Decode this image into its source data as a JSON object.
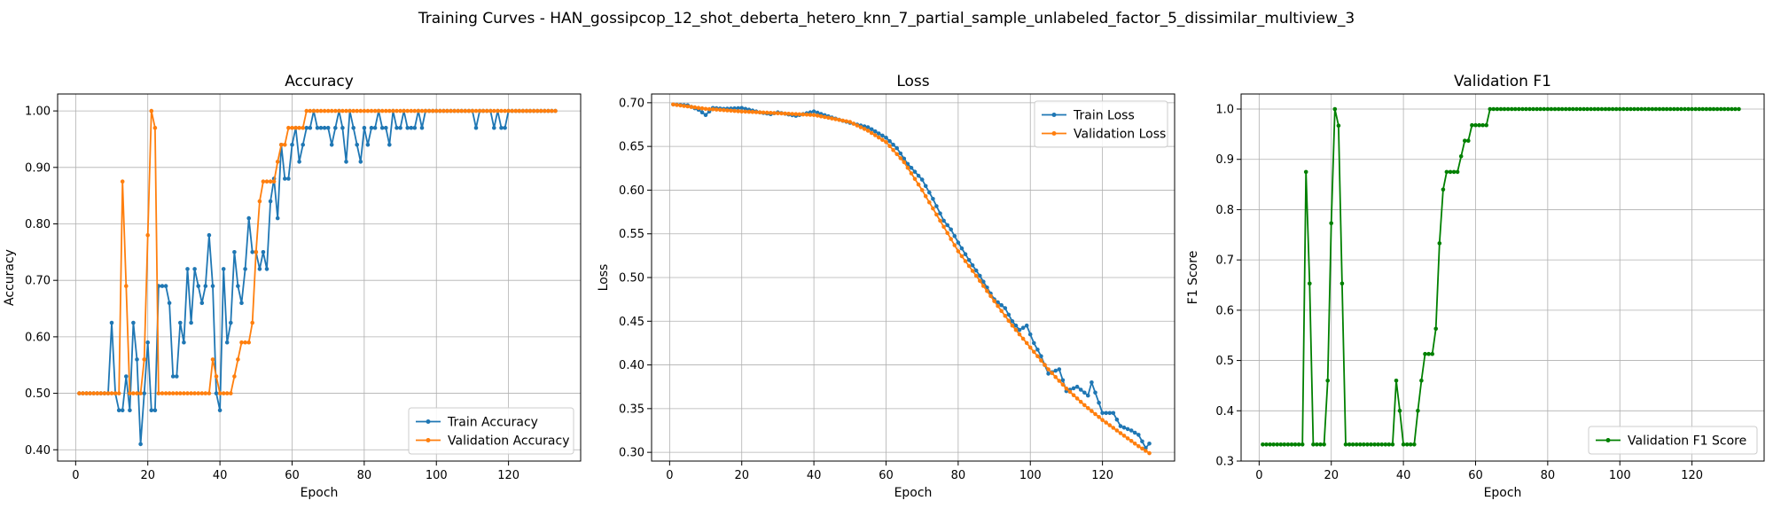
{
  "figure_title": "Training Curves - HAN_gossipcop_12_shot_deberta_hetero_knn_7_partial_sample_unlabeled_factor_5_dissimilar_multiview_3",
  "colors": {
    "blue": "#1f77b4",
    "orange": "#ff7f0e",
    "green": "#008000",
    "grid": "#b0b0b0"
  },
  "chart_data": [
    {
      "type": "line",
      "title": "Accuracy",
      "xlabel": "Epoch",
      "ylabel": "Accuracy",
      "xlim": [
        -5,
        140
      ],
      "ylim": [
        0.38,
        1.03
      ],
      "xticks": [
        0,
        20,
        40,
        60,
        80,
        100,
        120
      ],
      "yticks": [
        0.4,
        0.5,
        0.6,
        0.7,
        0.8,
        0.9,
        1.0
      ],
      "grid": true,
      "legend_position": "lower right",
      "series": [
        {
          "name": "Train Accuracy",
          "color": "#1f77b4",
          "anchors": [
            [
              1,
              0.5
            ],
            [
              9,
              0.5
            ],
            [
              10,
              0.625
            ],
            [
              11,
              0.5
            ],
            [
              12,
              0.47
            ],
            [
              13,
              0.47
            ],
            [
              14,
              0.53
            ],
            [
              15,
              0.47
            ],
            [
              16,
              0.625
            ],
            [
              17,
              0.56
            ],
            [
              18,
              0.41
            ],
            [
              19,
              0.5
            ],
            [
              20,
              0.59
            ],
            [
              21,
              0.47
            ],
            [
              22,
              0.47
            ],
            [
              23,
              0.69
            ],
            [
              24,
              0.69
            ],
            [
              25,
              0.69
            ],
            [
              26,
              0.66
            ],
            [
              27,
              0.53
            ],
            [
              28,
              0.53
            ],
            [
              29,
              0.625
            ],
            [
              30,
              0.59
            ],
            [
              31,
              0.72
            ],
            [
              32,
              0.625
            ],
            [
              33,
              0.72
            ],
            [
              34,
              0.69
            ],
            [
              35,
              0.66
            ],
            [
              36,
              0.69
            ],
            [
              37,
              0.78
            ],
            [
              38,
              0.69
            ],
            [
              39,
              0.5
            ],
            [
              40,
              0.47
            ],
            [
              41,
              0.72
            ],
            [
              42,
              0.59
            ],
            [
              43,
              0.625
            ],
            [
              44,
              0.75
            ],
            [
              45,
              0.69
            ],
            [
              46,
              0.66
            ],
            [
              47,
              0.72
            ],
            [
              48,
              0.81
            ],
            [
              49,
              0.75
            ],
            [
              50,
              0.75
            ],
            [
              51,
              0.72
            ],
            [
              52,
              0.75
            ],
            [
              53,
              0.72
            ],
            [
              54,
              0.84
            ],
            [
              55,
              0.88
            ],
            [
              56,
              0.81
            ],
            [
              57,
              0.94
            ],
            [
              58,
              0.88
            ],
            [
              59,
              0.88
            ],
            [
              60,
              0.94
            ],
            [
              61,
              0.97
            ],
            [
              62,
              0.91
            ],
            [
              63,
              0.94
            ],
            [
              64,
              0.97
            ],
            [
              65,
              0.97
            ],
            [
              66,
              1.0
            ],
            [
              67,
              0.97
            ],
            [
              68,
              0.97
            ],
            [
              69,
              0.97
            ],
            [
              70,
              0.97
            ],
            [
              71,
              0.94
            ],
            [
              72,
              0.97
            ],
            [
              73,
              1.0
            ],
            [
              74,
              0.97
            ],
            [
              75,
              0.91
            ],
            [
              76,
              1.0
            ],
            [
              77,
              0.97
            ],
            [
              78,
              0.94
            ],
            [
              79,
              0.91
            ],
            [
              80,
              0.97
            ],
            [
              81,
              0.94
            ],
            [
              82,
              0.97
            ],
            [
              83,
              0.97
            ],
            [
              84,
              1.0
            ],
            [
              85,
              0.97
            ],
            [
              86,
              0.97
            ],
            [
              87,
              0.94
            ],
            [
              88,
              1.0
            ],
            [
              89,
              0.97
            ],
            [
              90,
              0.97
            ],
            [
              91,
              1.0
            ],
            [
              92,
              0.97
            ],
            [
              93,
              0.97
            ],
            [
              94,
              0.97
            ],
            [
              95,
              1.0
            ],
            [
              96,
              0.97
            ],
            [
              97,
              1.0
            ],
            [
              110,
              1.0
            ],
            [
              111,
              0.97
            ],
            [
              112,
              1.0
            ],
            [
              115,
              1.0
            ],
            [
              116,
              0.97
            ],
            [
              117,
              1.0
            ],
            [
              118,
              0.97
            ],
            [
              119,
              0.97
            ],
            [
              120,
              1.0
            ],
            [
              133,
              1.0
            ]
          ]
        },
        {
          "name": "Validation Accuracy",
          "color": "#ff7f0e",
          "anchors": [
            [
              1,
              0.5
            ],
            [
              12,
              0.5
            ],
            [
              13,
              0.875
            ],
            [
              14,
              0.69
            ],
            [
              15,
              0.5
            ],
            [
              17,
              0.5
            ],
            [
              18,
              0.5
            ],
            [
              19,
              0.56
            ],
            [
              20,
              0.78
            ],
            [
              21,
              1.0
            ],
            [
              22,
              0.97
            ],
            [
              23,
              0.5
            ],
            [
              37,
              0.5
            ],
            [
              38,
              0.56
            ],
            [
              39,
              0.53
            ],
            [
              40,
              0.5
            ],
            [
              43,
              0.5
            ],
            [
              44,
              0.53
            ],
            [
              45,
              0.56
            ],
            [
              46,
              0.59
            ],
            [
              48,
              0.59
            ],
            [
              49,
              0.625
            ],
            [
              50,
              0.75
            ],
            [
              51,
              0.84
            ],
            [
              52,
              0.875
            ],
            [
              55,
              0.875
            ],
            [
              56,
              0.91
            ],
            [
              57,
              0.94
            ],
            [
              58,
              0.94
            ],
            [
              59,
              0.97
            ],
            [
              63,
              0.97
            ],
            [
              64,
              1.0
            ],
            [
              133,
              1.0
            ]
          ]
        }
      ]
    },
    {
      "type": "line",
      "title": "Loss",
      "xlabel": "Epoch",
      "ylabel": "Loss",
      "xlim": [
        -5,
        140
      ],
      "ylim": [
        0.29,
        0.71
      ],
      "xticks": [
        0,
        20,
        40,
        60,
        80,
        100,
        120
      ],
      "yticks": [
        0.3,
        0.35,
        0.4,
        0.45,
        0.5,
        0.55,
        0.6,
        0.65,
        0.7
      ],
      "grid": true,
      "legend_position": "upper right",
      "series": [
        {
          "name": "Train Loss",
          "color": "#1f77b4",
          "anchors": [
            [
              1,
              0.698
            ],
            [
              5,
              0.697
            ],
            [
              8,
              0.692
            ],
            [
              10,
              0.686
            ],
            [
              12,
              0.694
            ],
            [
              15,
              0.693
            ],
            [
              20,
              0.694
            ],
            [
              25,
              0.689
            ],
            [
              28,
              0.687
            ],
            [
              30,
              0.689
            ],
            [
              35,
              0.685
            ],
            [
              40,
              0.69
            ],
            [
              45,
              0.683
            ],
            [
              50,
              0.677
            ],
            [
              55,
              0.672
            ],
            [
              60,
              0.66
            ],
            [
              63,
              0.648
            ],
            [
              66,
              0.63
            ],
            [
              70,
              0.612
            ],
            [
              73,
              0.59
            ],
            [
              76,
              0.565
            ],
            [
              78,
              0.555
            ],
            [
              80,
              0.54
            ],
            [
              83,
              0.52
            ],
            [
              86,
              0.502
            ],
            [
              90,
              0.475
            ],
            [
              93,
              0.465
            ],
            [
              95,
              0.45
            ],
            [
              97,
              0.44
            ],
            [
              99,
              0.445
            ],
            [
              101,
              0.425
            ],
            [
              103,
              0.41
            ],
            [
              105,
              0.39
            ],
            [
              108,
              0.395
            ],
            [
              110,
              0.37
            ],
            [
              113,
              0.375
            ],
            [
              116,
              0.365
            ],
            [
              117,
              0.38
            ],
            [
              120,
              0.345
            ],
            [
              123,
              0.345
            ],
            [
              125,
              0.33
            ],
            [
              128,
              0.325
            ],
            [
              130,
              0.32
            ],
            [
              132,
              0.305
            ],
            [
              133,
              0.31
            ]
          ]
        },
        {
          "name": "Validation Loss",
          "color": "#ff7f0e",
          "anchors": [
            [
              1,
              0.698
            ],
            [
              10,
              0.693
            ],
            [
              20,
              0.69
            ],
            [
              30,
              0.688
            ],
            [
              40,
              0.686
            ],
            [
              50,
              0.678
            ],
            [
              55,
              0.668
            ],
            [
              60,
              0.655
            ],
            [
              65,
              0.632
            ],
            [
              70,
              0.6
            ],
            [
              75,
              0.565
            ],
            [
              80,
              0.53
            ],
            [
              85,
              0.502
            ],
            [
              90,
              0.473
            ],
            [
              95,
              0.445
            ],
            [
              100,
              0.42
            ],
            [
              105,
              0.395
            ],
            [
              110,
              0.373
            ],
            [
              115,
              0.354
            ],
            [
              120,
              0.337
            ],
            [
              125,
              0.322
            ],
            [
              130,
              0.307
            ],
            [
              133,
              0.299
            ]
          ]
        }
      ]
    },
    {
      "type": "line",
      "title": "Validation F1",
      "xlabel": "Epoch",
      "ylabel": "F1 Score",
      "xlim": [
        -5,
        140
      ],
      "ylim": [
        0.3,
        1.03
      ],
      "xticks": [
        0,
        20,
        40,
        60,
        80,
        100,
        120
      ],
      "yticks": [
        0.3,
        0.4,
        0.5,
        0.6,
        0.7,
        0.8,
        0.9,
        1.0
      ],
      "grid": true,
      "legend_position": "lower right",
      "series": [
        {
          "name": "Validation F1 Score",
          "color": "#008000",
          "anchors": [
            [
              1,
              0.333
            ],
            [
              12,
              0.333
            ],
            [
              13,
              0.875
            ],
            [
              14,
              0.653
            ],
            [
              15,
              0.333
            ],
            [
              18,
              0.333
            ],
            [
              19,
              0.46
            ],
            [
              20,
              0.773
            ],
            [
              21,
              1.0
            ],
            [
              22,
              0.967
            ],
            [
              23,
              0.653
            ],
            [
              24,
              0.333
            ],
            [
              37,
              0.333
            ],
            [
              38,
              0.46
            ],
            [
              39,
              0.4
            ],
            [
              40,
              0.333
            ],
            [
              43,
              0.333
            ],
            [
              44,
              0.4
            ],
            [
              45,
              0.46
            ],
            [
              46,
              0.513
            ],
            [
              48,
              0.513
            ],
            [
              49,
              0.563
            ],
            [
              50,
              0.733
            ],
            [
              51,
              0.84
            ],
            [
              52,
              0.875
            ],
            [
              55,
              0.875
            ],
            [
              56,
              0.906
            ],
            [
              57,
              0.937
            ],
            [
              58,
              0.937
            ],
            [
              59,
              0.968
            ],
            [
              63,
              0.968
            ],
            [
              64,
              1.0
            ],
            [
              133,
              1.0
            ]
          ]
        }
      ]
    }
  ]
}
